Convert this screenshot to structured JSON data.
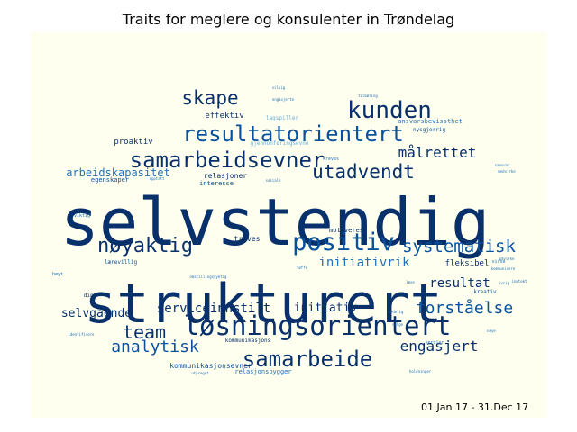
{
  "chart_title": "Traits for meglere og konsulenter in Trøndelag",
  "date_range": "01.Jan 17 - 31.Dec 17",
  "colors": {
    "background": "#fffff0",
    "dark": "#08306b",
    "mid": "#08519c",
    "light": "#2171b5",
    "pale": "#6baed6"
  },
  "chart_data": {
    "type": "wordcloud",
    "words": [
      {
        "text": "selvstendig",
        "weight": 100
      },
      {
        "text": "strukturert",
        "weight": 90
      },
      {
        "text": "løsningsorientert",
        "weight": 52
      },
      {
        "text": "samarbeidsevner",
        "weight": 44
      },
      {
        "text": "positiv",
        "weight": 44
      },
      {
        "text": "samarbeide",
        "weight": 42
      },
      {
        "text": "kunden",
        "weight": 42
      },
      {
        "text": "resultatorientert",
        "weight": 38
      },
      {
        "text": "nøyaktig",
        "weight": 38
      },
      {
        "text": "skape",
        "weight": 34
      },
      {
        "text": "utadvendt",
        "weight": 34
      },
      {
        "text": "systematisk",
        "weight": 34
      },
      {
        "text": "team",
        "weight": 34
      },
      {
        "text": "analytisk",
        "weight": 32
      },
      {
        "text": "forståelse",
        "weight": 30
      },
      {
        "text": "engasjert",
        "weight": 28
      },
      {
        "text": "målrettet",
        "weight": 26
      },
      {
        "text": "initiativrik",
        "weight": 24
      },
      {
        "text": "resultat",
        "weight": 24
      },
      {
        "text": "serviceinnstilt",
        "weight": 22
      },
      {
        "text": "initiativ",
        "weight": 22
      },
      {
        "text": "selvgående",
        "weight": 22
      },
      {
        "text": "arbeidskapasitet",
        "weight": 20
      },
      {
        "text": "proaktiv",
        "weight": 16
      },
      {
        "text": "fleksibel",
        "weight": 16
      },
      {
        "text": "effektiv",
        "weight": 16
      },
      {
        "text": "kommunikasjonsevner",
        "weight": 14
      },
      {
        "text": "relasjoner",
        "weight": 14
      },
      {
        "text": "interesse",
        "weight": 13
      },
      {
        "text": "egenskaper",
        "weight": 13
      },
      {
        "text": "trives",
        "weight": 13
      },
      {
        "text": "motiveres",
        "weight": 12
      },
      {
        "text": "ansvarsbevissthet",
        "weight": 12
      },
      {
        "text": "relasjonsbygger",
        "weight": 12
      },
      {
        "text": "lagspiller",
        "weight": 11
      },
      {
        "text": "gjennomføringsevne",
        "weight": 11
      },
      {
        "text": "nysgjerrig",
        "weight": 11
      },
      {
        "text": "lærevillig",
        "weight": 11
      },
      {
        "text": "kreativ",
        "weight": 10
      },
      {
        "text": "dine",
        "weight": 10
      },
      {
        "text": "kommunikasjons",
        "weight": 10
      },
      {
        "text": "viktig",
        "weight": 9
      },
      {
        "text": "høyt",
        "weight": 9
      },
      {
        "text": "villig",
        "weight": 8
      },
      {
        "text": "engasjerte",
        "weight": 8
      },
      {
        "text": "tilbøring",
        "weight": 8
      },
      {
        "text": "opptatt",
        "weight": 8
      },
      {
        "text": "omstillingsdyktig",
        "weight": 8
      },
      {
        "text": "verdier",
        "weight": 8
      },
      {
        "text": "kreves",
        "weight": 8
      },
      {
        "text": "visse",
        "weight": 8
      },
      {
        "text": "kommunisere",
        "weight": 8
      },
      {
        "text": "medvirke",
        "weight": 7
      },
      {
        "text": "påvirke",
        "weight": 7
      },
      {
        "text": "identifisere",
        "weight": 7
      },
      {
        "text": "utpreget",
        "weight": 7
      },
      {
        "text": "tydelig",
        "weight": 7
      },
      {
        "text": "sosiale",
        "weight": 7
      },
      {
        "text": "løse",
        "weight": 7
      },
      {
        "text": "selge",
        "weight": 7
      },
      {
        "text": "holdninger",
        "weight": 7
      },
      {
        "text": "tøffe",
        "weight": 7
      },
      {
        "text": "nøye",
        "weight": 7
      },
      {
        "text": "ivrig",
        "weight": 7
      },
      {
        "text": "inntekt",
        "weight": 7
      },
      {
        "text": "samsvar",
        "weight": 7
      }
    ]
  }
}
